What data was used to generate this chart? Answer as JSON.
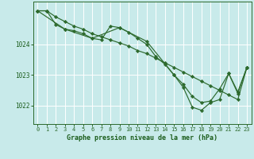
{
  "bg_color": "#c8eaea",
  "grid_color": "#a8d8d8",
  "line_color": "#2d6a2d",
  "marker_color": "#2d6a2d",
  "xlabel": "Graphe pression niveau de la mer (hPa)",
  "xlabel_color": "#1a5c1a",
  "ylabel_color": "#1a5c1a",
  "tick_color": "#2d6a2d",
  "spine_color": "#2d6a2d",
  "ylim": [
    1021.4,
    1025.4
  ],
  "xlim": [
    -0.5,
    23.5
  ],
  "yticks": [
    1022,
    1023,
    1024
  ],
  "xticks": [
    0,
    1,
    2,
    3,
    4,
    5,
    6,
    7,
    8,
    9,
    10,
    11,
    12,
    13,
    14,
    15,
    16,
    17,
    18,
    19,
    20,
    21,
    22,
    23
  ],
  "series": [
    {
      "x": [
        0,
        1,
        2,
        3,
        4,
        5,
        6,
        7,
        8,
        9,
        10,
        11,
        12,
        13,
        14,
        15,
        16,
        17,
        18,
        19,
        20,
        21,
        22,
        23
      ],
      "y": [
        1025.1,
        1025.1,
        1024.9,
        1024.75,
        1024.6,
        1024.5,
        1024.35,
        1024.25,
        1024.15,
        1024.05,
        1023.95,
        1023.8,
        1023.7,
        1023.55,
        1023.4,
        1023.25,
        1023.1,
        1022.95,
        1022.8,
        1022.65,
        1022.5,
        1022.35,
        1022.2,
        1023.25
      ]
    },
    {
      "x": [
        0,
        1,
        2,
        3,
        4,
        5,
        6,
        7,
        8,
        9,
        10,
        11,
        12,
        13,
        14,
        15,
        16,
        17,
        18,
        19,
        20,
        21,
        22,
        23
      ],
      "y": [
        1025.1,
        1025.1,
        1024.65,
        1024.5,
        1024.45,
        1024.35,
        1024.2,
        1024.15,
        1024.6,
        1024.55,
        1024.4,
        1024.2,
        1024.0,
        1023.6,
        1023.35,
        1023.0,
        1022.7,
        1022.3,
        1022.1,
        1022.15,
        1022.55,
        1023.05,
        1022.45,
        1023.25
      ]
    },
    {
      "x": [
        0,
        3,
        6,
        9,
        12,
        15,
        16,
        17,
        18,
        19,
        20,
        21,
        22,
        23
      ],
      "y": [
        1025.1,
        1024.5,
        1024.2,
        1024.55,
        1024.1,
        1023.0,
        1022.6,
        1021.95,
        1021.85,
        1022.1,
        1022.2,
        1023.05,
        1022.4,
        1023.25
      ]
    }
  ]
}
